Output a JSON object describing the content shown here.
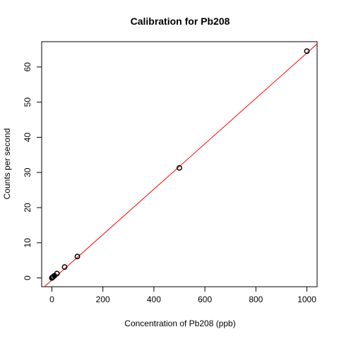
{
  "chart_data": {
    "type": "scatter",
    "title": "Calibration for Pb208",
    "xlabel": "Concentration of  Pb208 (ppb)",
    "ylabel": "Counts per second",
    "xlim": [
      -40,
      1040
    ],
    "ylim": [
      -2.5,
      67.2
    ],
    "xticks": [
      0,
      200,
      400,
      600,
      800,
      1000
    ],
    "yticks": [
      0,
      10,
      20,
      30,
      40,
      50,
      60
    ],
    "grid": false,
    "legend": "none",
    "series": [
      {
        "marker": "open-circle",
        "points": [
          {
            "x": 0,
            "y": 0.0
          },
          {
            "x": 1,
            "y": 0.07
          },
          {
            "x": 2,
            "y": 0.13
          },
          {
            "x": 5,
            "y": 0.32
          },
          {
            "x": 10,
            "y": 0.63
          },
          {
            "x": 20,
            "y": 1.25
          },
          {
            "x": 50,
            "y": 3.1
          },
          {
            "x": 100,
            "y": 6.1
          },
          {
            "x": 500,
            "y": 31.3
          },
          {
            "x": 1000,
            "y": 64.5
          }
        ]
      }
    ],
    "fit_line": {
      "slope": 0.0646,
      "intercept": -0.6,
      "color": "#ff0000"
    },
    "colors": {
      "points": "#000000",
      "fit": "#ff0000",
      "axes": "#000000"
    }
  }
}
